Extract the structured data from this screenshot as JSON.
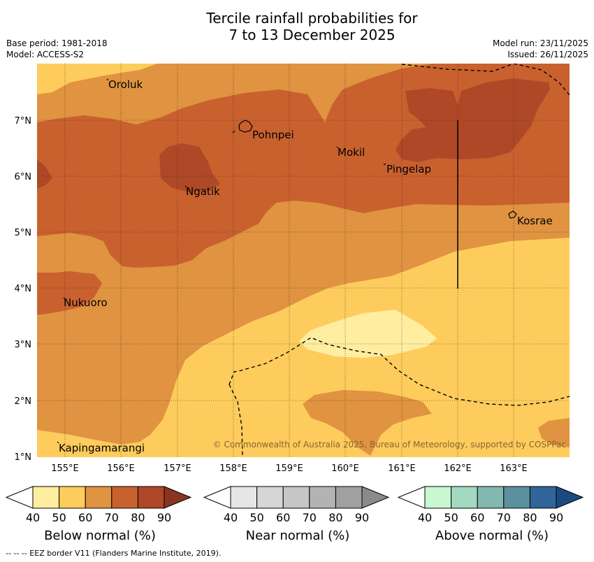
{
  "title_line1": "Tercile rainfall probabilities for",
  "title_line2": "7 to 13 December 2025",
  "meta": {
    "base_period": "Base period: 1981-2018",
    "model": "Model: ACCESS-S2",
    "model_run": "Model run: 23/11/2025",
    "issued": "Issued: 26/11/2025"
  },
  "map": {
    "latitude_labels": [
      "7°N",
      "6°N",
      "5°N",
      "4°N",
      "3°N",
      "2°N",
      "1°N"
    ],
    "longitude_labels": [
      "155°E",
      "156°E",
      "157°E",
      "158°E",
      "159°E",
      "160°E",
      "161°E",
      "162°E",
      "163°E"
    ],
    "places": [
      "Oroluk",
      "Pohnpei",
      "Mokil",
      "Pingelap",
      "Ngatik",
      "Kosrae",
      "Nukuoro",
      "Kapingamarangi"
    ],
    "copyright": "© Commonwealth of Australia 2025, Bureau of Meteorology, supported by COSPPac"
  },
  "legends": [
    {
      "name": "Below normal (%)",
      "ticks": [
        "40",
        "50",
        "60",
        "70",
        "80",
        "90"
      ],
      "colors": [
        "#ffeda0",
        "#fecc5c",
        "#e09340",
        "#c9612f",
        "#ae4827",
        "#8a3520"
      ]
    },
    {
      "name": "Near normal (%)",
      "ticks": [
        "40",
        "50",
        "60",
        "70",
        "80",
        "90"
      ],
      "colors": [
        "#e6e6e6",
        "#d6d6d6",
        "#c6c6c6",
        "#b3b3b3",
        "#a0a0a0",
        "#8a8a8a"
      ]
    },
    {
      "name": "Above normal (%)",
      "ticks": [
        "40",
        "50",
        "60",
        "70",
        "80",
        "90"
      ],
      "colors": [
        "#c8f7d2",
        "#a3d9c0",
        "#82b8b0",
        "#5b919e",
        "#2f6599",
        "#1b4a83"
      ]
    }
  ],
  "footer": "--  --  -- EEZ border V11 (Flanders Marine Institute, 2019)."
}
